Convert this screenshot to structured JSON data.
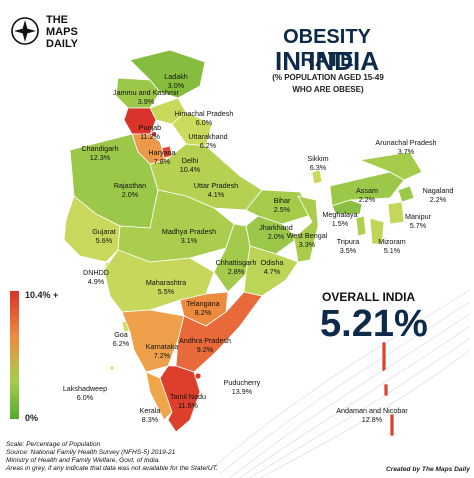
{
  "brand": {
    "line1": "THE",
    "line2": "MAPS",
    "line3": "DAILY"
  },
  "title": {
    "line1": "OBESITY RATE",
    "line2": "IN INDIA",
    "sub1": "(% POPULATION AGED 15-49",
    "sub2": "WHO ARE OBESE)"
  },
  "overall": {
    "label": "OVERALL INDIA",
    "value": "5.21%"
  },
  "legend": {
    "max": "10.4% +",
    "min": "0%",
    "colors": [
      "#d9332a",
      "#ee8a3d",
      "#a7cf4a",
      "#55a92e"
    ]
  },
  "regions": [
    {
      "name": "Ladakh",
      "value": "3.0%"
    },
    {
      "name": "Jammu and Kashmir",
      "value": "3.9%"
    },
    {
      "name": "Himachal Pradesh",
      "value": "6.0%"
    },
    {
      "name": "Punjab",
      "value": "11.2%"
    },
    {
      "name": "Uttarakhand",
      "value": "6.2%"
    },
    {
      "name": "Chandigarh",
      "value": "12.3%"
    },
    {
      "name": "Haryana",
      "value": "7.8%"
    },
    {
      "name": "Delhi",
      "value": "10.4%"
    },
    {
      "name": "Arunachal Pradesh",
      "value": "3.7%"
    },
    {
      "name": "Sikkim",
      "value": "6.3%"
    },
    {
      "name": "Rajasthan",
      "value": "2.0%"
    },
    {
      "name": "Uttar Pradesh",
      "value": "4.1%"
    },
    {
      "name": "Assam",
      "value": "2.2%"
    },
    {
      "name": "Nagaland",
      "value": "2.2%"
    },
    {
      "name": "Bihar",
      "value": "2.5%"
    },
    {
      "name": "Meghalaya",
      "value": "1.5%"
    },
    {
      "name": "Manipur",
      "value": "5.7%"
    },
    {
      "name": "Gujarat",
      "value": "5.6%"
    },
    {
      "name": "Madhya Pradesh",
      "value": "3.1%"
    },
    {
      "name": "Jharkhand",
      "value": "2.0%"
    },
    {
      "name": "West Bengal",
      "value": "3.3%"
    },
    {
      "name": "Tripura",
      "value": "3.5%"
    },
    {
      "name": "Mizoram",
      "value": "5.1%"
    },
    {
      "name": "DNHDD",
      "value": "4.9%"
    },
    {
      "name": "Chhattisgarh",
      "value": "2.8%"
    },
    {
      "name": "Odisha",
      "value": "4.7%"
    },
    {
      "name": "Maharashtra",
      "value": "5.5%"
    },
    {
      "name": "Telangana",
      "value": "8.2%"
    },
    {
      "name": "Goa",
      "value": "6.2%"
    },
    {
      "name": "Karnataka",
      "value": "7.2%"
    },
    {
      "name": "Andhra Pradesh",
      "value": "9.2%"
    },
    {
      "name": "Lakshadweep",
      "value": "6.0%"
    },
    {
      "name": "Puducherry",
      "value": "13.9%"
    },
    {
      "name": "Kerala",
      "value": "8.3%"
    },
    {
      "name": "Tamil Nadu",
      "value": "11.5%"
    },
    {
      "name": "Andaman and Nicobar",
      "value": "12.8%"
    }
  ],
  "footer": {
    "line1": "Scale: Percentage of Population",
    "line2": "Source: National Family Health Survey (NFHS-5) 2019-21",
    "line3": "Ministry of Health and Family Welfare, Govt. of India.",
    "line4": "Areas in grey, if any indicate that data was not available for the State/UT.",
    "credit": "Created by The Maps Daily"
  }
}
